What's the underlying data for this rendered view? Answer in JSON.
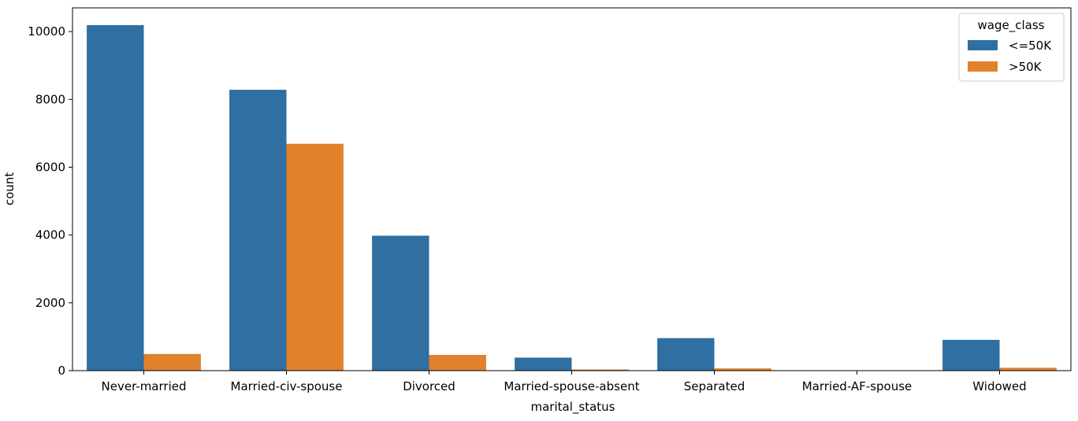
{
  "chart_data": {
    "type": "bar",
    "xlabel": "marital_status",
    "ylabel": "count",
    "categories": [
      "Never-married",
      "Married-civ-spouse",
      "Divorced",
      "Married-spouse-absent",
      "Separated",
      "Married-AF-spouse",
      "Widowed"
    ],
    "series": [
      {
        "name": "<=50K",
        "color": "#2f6fa2",
        "values": [
          10192,
          8284,
          3980,
          384,
          959,
          8,
          908
        ]
      },
      {
        "name": ">50K",
        "color": "#e1812c",
        "values": [
          491,
          6692,
          463,
          34,
          66,
          10,
          85
        ]
      }
    ],
    "ylim": [
      0,
      10700
    ],
    "yticks": [
      0,
      2000,
      4000,
      6000,
      8000,
      10000
    ],
    "ytick_labels": [
      "0",
      "2000",
      "4000",
      "6000",
      "8000",
      "10000"
    ],
    "grid": false,
    "legend": {
      "title": "wage_class",
      "position": "top-right"
    }
  }
}
